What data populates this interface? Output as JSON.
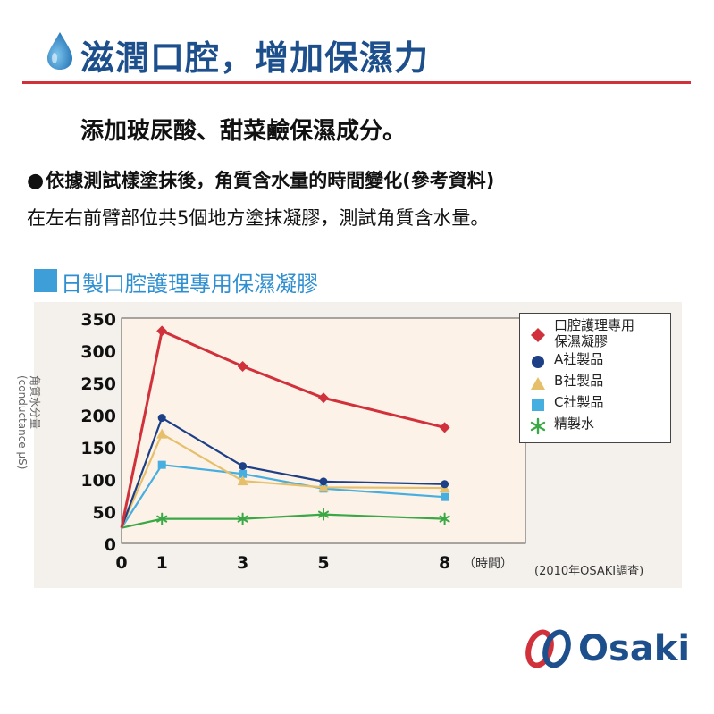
{
  "header": {
    "title": "滋潤口腔，增加保濕力"
  },
  "subtitle": "添加玻尿酸、甜菜鹼保濕成分。",
  "description": {
    "line1_bullet": "●",
    "line1": "依據測試樣塗抹後，角質含水量的時間變化(參考資料)",
    "line2": "在左右前臂部位共5個地方塗抹凝膠，測試角質含水量。"
  },
  "product_label": "日製口腔護理專用保濕凝膠",
  "colors": {
    "header_blue": "#1d4f8c",
    "red_rule": "#d0313a",
    "product_blue": "#3d9ed8",
    "chart_bg": "#f4f1ec",
    "plot_bg": "#fdf2e8"
  },
  "chart_data": {
    "type": "line",
    "y_axis_caption": [
      "角質水分量",
      "(conductance μS)"
    ],
    "x_unit_label": "（時間）",
    "x": [
      0,
      1,
      3,
      5,
      8
    ],
    "xticks": [
      "0",
      "1",
      "3",
      "5",
      "8"
    ],
    "ylim": [
      0,
      350
    ],
    "yticks": [
      "0",
      "50",
      "100",
      "150",
      "200",
      "250",
      "300",
      "350"
    ],
    "grid": false,
    "legend_position": "right",
    "series": [
      {
        "name": "口腔護理專用保濕凝膠",
        "name_lines": [
          "口腔護理專用",
          "保濕凝膠"
        ],
        "marker": "diamond",
        "color": "#d0313a",
        "values": [
          24,
          330,
          275,
          226,
          180
        ]
      },
      {
        "name": "A社製品",
        "marker": "circle",
        "color": "#1d3f86",
        "values": [
          24,
          195,
          120,
          96,
          92
        ]
      },
      {
        "name": "B社製品",
        "marker": "triangle",
        "color": "#e6bf6a",
        "values": [
          24,
          170,
          97,
          87,
          86
        ]
      },
      {
        "name": "C社製品",
        "marker": "square",
        "color": "#47aee0",
        "values": [
          24,
          122,
          108,
          85,
          72
        ]
      },
      {
        "name": "精製水",
        "marker": "asterisk",
        "color": "#3aa845",
        "values": [
          24,
          38,
          38,
          45,
          38
        ]
      }
    ]
  },
  "source_note": "(2010年OSAKI調査)",
  "logo": {
    "text": "Osaki"
  }
}
